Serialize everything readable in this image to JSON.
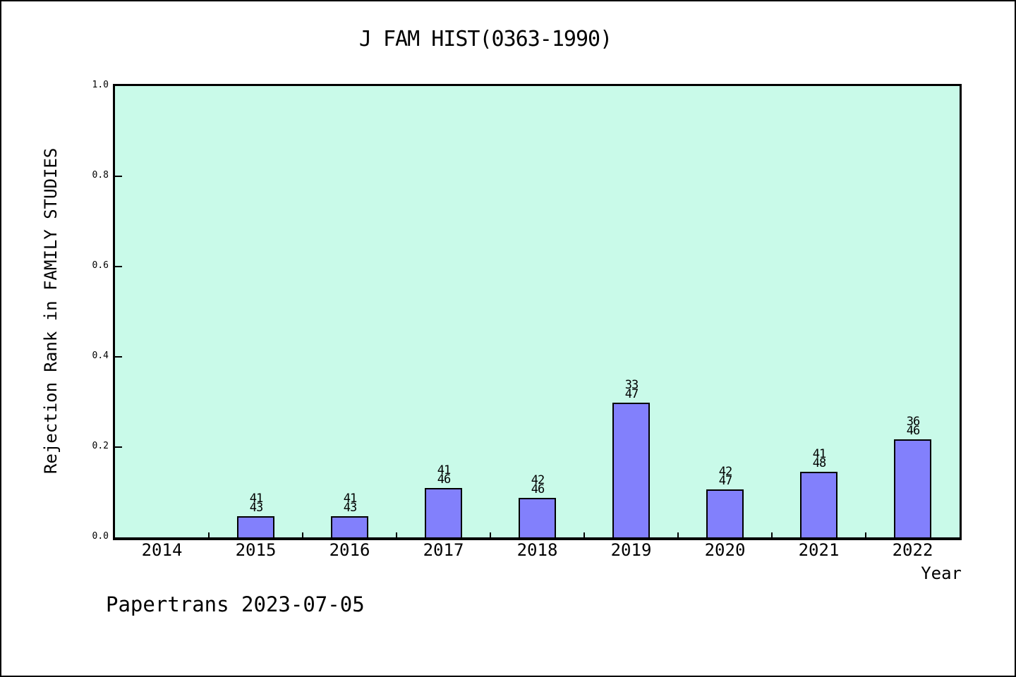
{
  "footer": {
    "text": "Papertrans 2023-07-05"
  },
  "chart_data": {
    "type": "bar",
    "title": "J FAM HIST(0363-1990)",
    "xlabel": "Year",
    "ylabel": "Rejection Rank in FAMILY STUDIES",
    "categories": [
      "2014",
      "2015",
      "2016",
      "2017",
      "2018",
      "2019",
      "2020",
      "2021",
      "2022"
    ],
    "values": [
      null,
      0.0465,
      0.0465,
      0.1087,
      0.087,
      0.2979,
      0.1064,
      0.1458,
      0.2174
    ],
    "annotations": [
      null,
      {
        "line1": "41",
        "line2": "43"
      },
      {
        "line1": "41",
        "line2": "43"
      },
      {
        "line1": "41",
        "line2": "46"
      },
      {
        "line1": "42",
        "line2": "46"
      },
      {
        "line1": "33",
        "line2": "47"
      },
      {
        "line1": "42",
        "line2": "47"
      },
      {
        "line1": "41",
        "line2": "48"
      },
      {
        "line1": "36",
        "line2": "46"
      }
    ],
    "ylim": [
      0.0,
      1.0
    ],
    "yticks": [
      {
        "value": 0.0,
        "label": "0.0"
      },
      {
        "value": 0.2,
        "label": "0.2"
      },
      {
        "value": 0.4,
        "label": "0.4"
      },
      {
        "value": 0.6,
        "label": "0.6"
      },
      {
        "value": 0.8,
        "label": "0.8"
      },
      {
        "value": 1.0,
        "label": "1.0"
      }
    ],
    "grid": false,
    "legend": null,
    "colors": {
      "plot_bg": "#C9FAE9",
      "bar_fill": "#8280FC",
      "bar_edge": "#000000",
      "text": "#000000"
    }
  }
}
